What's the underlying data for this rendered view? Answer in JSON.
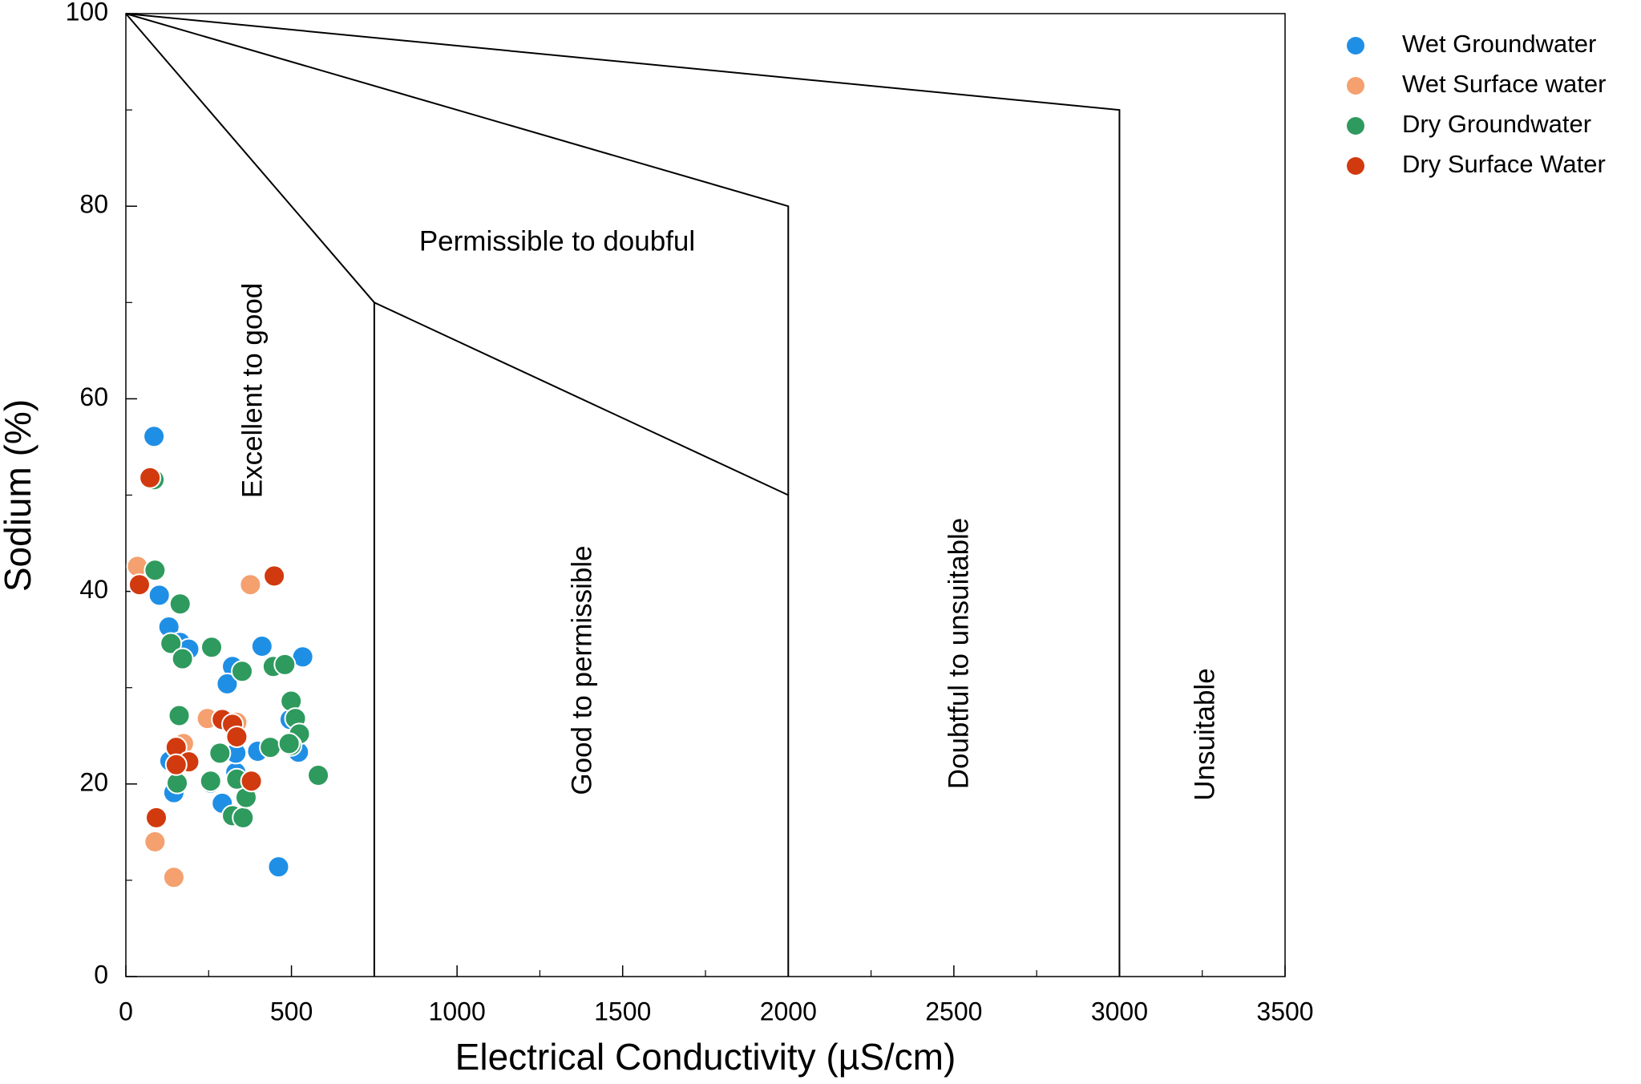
{
  "chart_data": {
    "type": "scatter",
    "xlabel": "Electrical Conductivity (µS/cm)",
    "ylabel": "Sodium (%)",
    "xlim": [
      0,
      3500
    ],
    "ylim": [
      0,
      100
    ],
    "xticks": [
      0,
      500,
      1000,
      1500,
      2000,
      2500,
      3000,
      3500
    ],
    "yticks": [
      0,
      20,
      40,
      60,
      80,
      100
    ],
    "legend": "right",
    "boundaries": [
      {
        "x": [
          0,
          750,
          750
        ],
        "y": [
          100,
          70,
          0
        ]
      },
      {
        "x": [
          0,
          2000,
          2000
        ],
        "y": [
          100,
          80,
          0
        ]
      },
      {
        "x": [
          750,
          2000
        ],
        "y": [
          70,
          50
        ]
      },
      {
        "x": [
          0,
          3000,
          3000
        ],
        "y": [
          100,
          90,
          0
        ]
      }
    ],
    "regions": [
      "Excellent to good",
      "Permissible to doubful",
      "Good to permissible",
      "Doubtful to unsuitable",
      "Unsuitable"
    ],
    "series": [
      {
        "name": "Wet Groundwater",
        "color": "#1f8fe6",
        "x": [
          85,
          101,
          130,
          164,
          190,
          322,
          306,
          411,
          534,
          398,
          521,
          496,
          133,
          145,
          256,
          291,
          332,
          461,
          332
        ],
        "values": [
          56.1,
          39.6,
          36.3,
          34.7,
          34.0,
          32.2,
          30.4,
          34.3,
          33.2,
          23.4,
          23.3,
          26.7,
          22.4,
          19.1,
          20.1,
          18.0,
          21.2,
          11.4,
          23.2
        ]
      },
      {
        "name": "Wet Surface water",
        "color": "#f4a06f",
        "x": [
          35,
          376,
          88,
          145,
          246,
          174,
          335
        ],
        "values": [
          42.6,
          40.7,
          14.0,
          10.3,
          26.8,
          24.2,
          26.4
        ]
      },
      {
        "name": "Dry Groundwater",
        "color": "#2e9a5e",
        "x": [
          88,
          85,
          164,
          136,
          171,
          259,
          351,
          445,
          480,
          499,
          512,
          524,
          499,
          436,
          284,
          161,
          155,
          256,
          322,
          354,
          363,
          335,
          581,
          493
        ],
        "values": [
          42.2,
          51.6,
          38.7,
          34.6,
          33.0,
          34.2,
          31.7,
          32.2,
          32.4,
          28.6,
          26.8,
          25.2,
          24.0,
          23.8,
          23.2,
          27.1,
          20.1,
          20.3,
          16.7,
          16.5,
          18.6,
          20.5,
          20.9,
          24.2
        ]
      },
      {
        "name": "Dry Surface Water",
        "color": "#d13a0e",
        "x": [
          41,
          73,
          448,
          291,
          322,
          335,
          152,
          190,
          152,
          379,
          92
        ],
        "values": [
          40.7,
          51.8,
          41.6,
          26.7,
          26.2,
          24.9,
          23.8,
          22.3,
          22.0,
          20.3,
          16.5
        ]
      }
    ]
  }
}
